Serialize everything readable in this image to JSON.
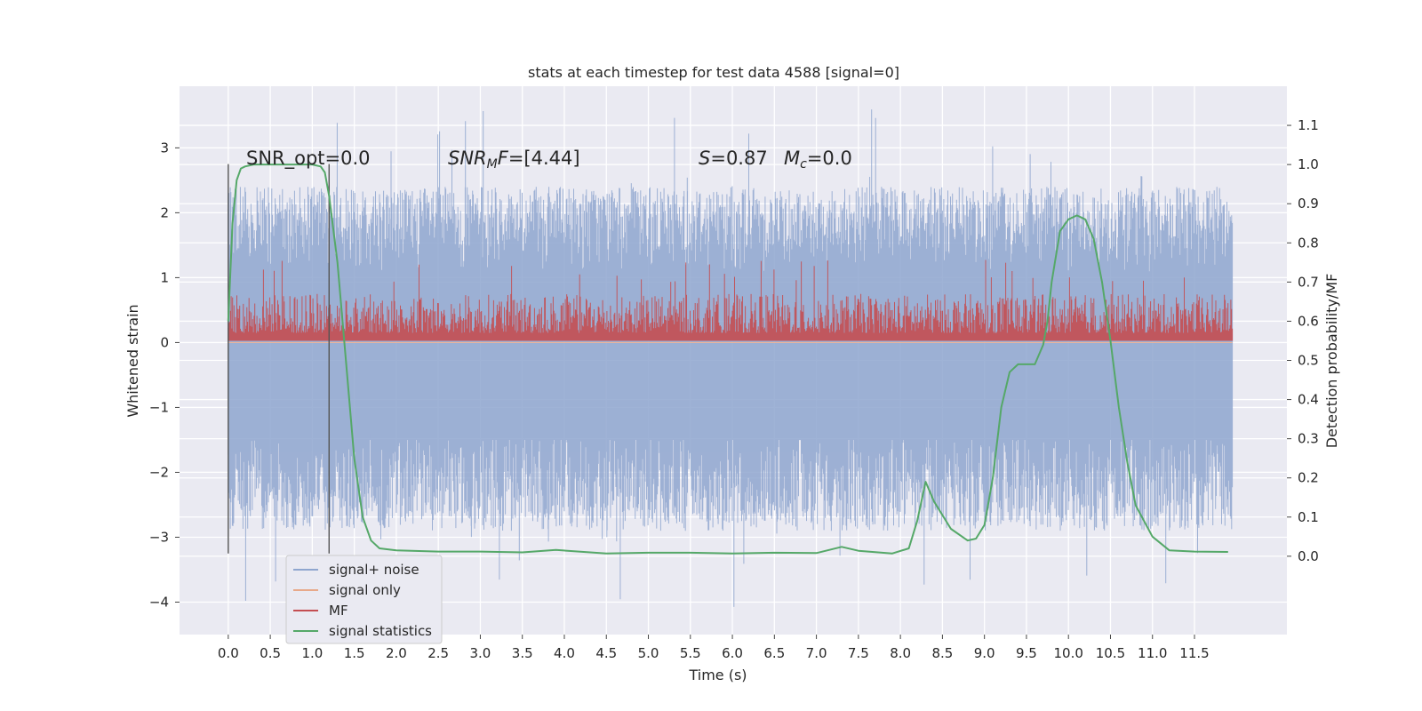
{
  "chart_data": {
    "type": "line",
    "title": "stats at each timestep for test data 4588 [signal=0]",
    "xlabel": "Time (s)",
    "ylabel": "Whitened strain",
    "y2label": "Detection probability/MF",
    "xlim": [
      -0.58,
      12.6
    ],
    "ylim": [
      -4.5,
      3.95
    ],
    "y2lim": [
      -0.2,
      1.2
    ],
    "x_ticks": [
      0.0,
      0.5,
      1.0,
      1.5,
      2.0,
      2.5,
      3.0,
      3.5,
      4.0,
      4.5,
      5.0,
      5.5,
      6.0,
      6.5,
      7.0,
      7.5,
      8.0,
      8.5,
      9.0,
      9.5,
      10.0,
      10.5,
      11.0,
      11.5
    ],
    "x_tick_labels": [
      "0.0",
      "0.5",
      "1.0",
      "1.5",
      "2.0",
      "2.5",
      "3.0",
      "3.5",
      "4.0",
      "4.5",
      "5.0",
      "5.5",
      "6.0",
      "6.5",
      "7.0",
      "7.5",
      "8.0",
      "8.5",
      "9.0",
      "9.5",
      "10.0",
      "10.5",
      "11.0",
      "11.5"
    ],
    "y_ticks": [
      3,
      2,
      1,
      0,
      -1,
      -2,
      -3,
      -4
    ],
    "y_tick_labels": [
      "3",
      "2",
      "1",
      "0",
      "−1",
      "−2",
      "−3",
      "−4"
    ],
    "y2_ticks": [
      1.1,
      1.0,
      0.9,
      0.8,
      0.7,
      0.6,
      0.5,
      0.4,
      0.3,
      0.2,
      0.1,
      0.0
    ],
    "y2_tick_labels": [
      "1.1",
      "1.0",
      "0.9",
      "0.8",
      "0.7",
      "0.6",
      "0.5",
      "0.4",
      "0.3",
      "0.2",
      "0.1",
      "0.0"
    ],
    "grid": true,
    "legend_position": "lower-left",
    "annotations": {
      "snr_opt": "SNR_opt=0.0",
      "snr_mf_label": "SNR",
      "snr_mf_sub": "M",
      "snr_mf_f": "F",
      "snr_mf_value": "=[4.44]",
      "s_label": "S",
      "s_value": "=0.87",
      "mc_label": "M",
      "mc_sub": "c",
      "mc_value": "=0.0"
    },
    "vertical_lines_x": [
      0.0,
      1.2
    ],
    "vertical_lines_span_y": [
      -3.25,
      2.75
    ],
    "series": [
      {
        "name": "signal+ noise",
        "color": "#8fa6cf",
        "axis": "left",
        "x_range": [
          0.0,
          11.95
        ],
        "y_envelope": [
          -2.9,
          2.4
        ],
        "y_extremes": [
          -4.1,
          3.6
        ]
      },
      {
        "name": "signal only",
        "color": "#e8a98a",
        "axis": "left",
        "x": [
          0.0,
          11.95
        ],
        "y": [
          0.0,
          0.0
        ]
      },
      {
        "name": "MF",
        "color": "#c44e52",
        "axis": "right",
        "x_range": [
          0.0,
          11.95
        ],
        "y_baseline": 0.55,
        "y_range": [
          0.55,
          0.7
        ]
      },
      {
        "name": "signal statistics",
        "color": "#55a868",
        "axis": "right",
        "x": [
          0.0,
          0.05,
          0.1,
          0.15,
          0.2,
          0.3,
          0.5,
          0.8,
          1.0,
          1.1,
          1.15,
          1.2,
          1.3,
          1.4,
          1.5,
          1.6,
          1.7,
          1.8,
          2.0,
          2.5,
          3.0,
          3.5,
          3.9,
          4.5,
          5.0,
          5.5,
          6.0,
          6.5,
          7.0,
          7.3,
          7.5,
          7.9,
          8.1,
          8.2,
          8.3,
          8.4,
          8.6,
          8.8,
          8.9,
          9.0,
          9.1,
          9.2,
          9.3,
          9.4,
          9.5,
          9.6,
          9.7,
          9.75,
          9.8,
          9.9,
          10.0,
          10.1,
          10.2,
          10.3,
          10.4,
          10.5,
          10.6,
          10.7,
          10.8,
          11.0,
          11.2,
          11.5,
          11.9
        ],
        "y": [
          0.6,
          0.85,
          0.96,
          0.99,
          0.995,
          1.0,
          1.0,
          1.0,
          1.0,
          0.995,
          0.98,
          0.92,
          0.75,
          0.5,
          0.25,
          0.1,
          0.04,
          0.02,
          0.015,
          0.012,
          0.012,
          0.01,
          0.016,
          0.007,
          0.009,
          0.009,
          0.007,
          0.009,
          0.008,
          0.024,
          0.014,
          0.007,
          0.02,
          0.09,
          0.19,
          0.14,
          0.07,
          0.04,
          0.045,
          0.08,
          0.2,
          0.38,
          0.47,
          0.49,
          0.49,
          0.49,
          0.54,
          0.6,
          0.7,
          0.83,
          0.86,
          0.87,
          0.86,
          0.81,
          0.7,
          0.55,
          0.38,
          0.24,
          0.13,
          0.05,
          0.015,
          0.012,
          0.011
        ]
      }
    ]
  }
}
